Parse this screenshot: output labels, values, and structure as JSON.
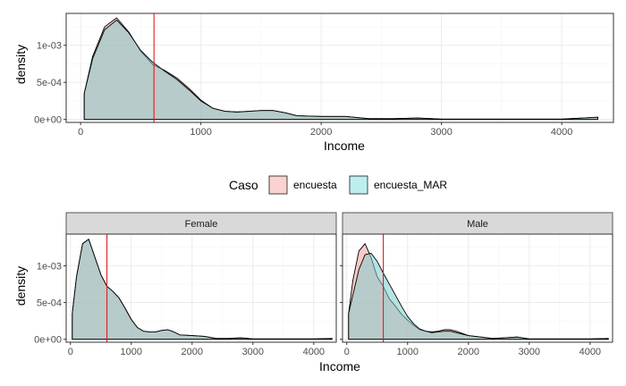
{
  "chart_data": [
    {
      "type": "area",
      "subtype": "density",
      "panel": "overall",
      "xlabel": "Income",
      "ylabel": "density",
      "xlim": [
        -120,
        4430
      ],
      "ylim": [
        -4e-05,
        0.00143
      ],
      "x_ticks": [
        0,
        1000,
        2000,
        3000,
        4000
      ],
      "x_tick_labels": [
        "0",
        "1000",
        "2000",
        "3000",
        "4000"
      ],
      "y_ticks": [
        0,
        0.0005,
        0.001
      ],
      "y_tick_labels": [
        "0e+00",
        "5e-04",
        "1e-03"
      ],
      "grid": true,
      "vline": 610,
      "series": [
        {
          "name": "encuesta",
          "x": [
            30,
            100,
            200,
            300,
            400,
            500,
            600,
            700,
            800,
            900,
            1000,
            1100,
            1200,
            1300,
            1400,
            1500,
            1600,
            1700,
            1800,
            2000,
            2200,
            2400,
            2600,
            2800,
            3000,
            3300,
            3600,
            4000,
            4300
          ],
          "y": [
            0.00035,
            0.00085,
            0.00125,
            0.00137,
            0.00118,
            0.00092,
            0.00074,
            0.00066,
            0.00056,
            0.00042,
            0.00026,
            0.00015,
            0.00011,
            0.0001,
            0.00011,
            0.00012,
            0.00012,
            9e-05,
            5e-05,
            4e-05,
            4e-05,
            1e-05,
            1e-05,
            2e-05,
            5e-06,
            5e-06,
            5e-06,
            5e-06,
            3e-05
          ]
        },
        {
          "name": "encuesta_MAR",
          "x": [
            30,
            100,
            200,
            300,
            400,
            500,
            600,
            700,
            800,
            900,
            1000,
            1100,
            1200,
            1300,
            1400,
            1500,
            1600,
            1700,
            1800,
            2000,
            2200,
            2400,
            2600,
            2800,
            3000,
            3300,
            3600,
            4000,
            4300
          ],
          "y": [
            0.00035,
            0.00082,
            0.00121,
            0.00134,
            0.00117,
            0.00093,
            0.00077,
            0.00065,
            0.00054,
            0.0004,
            0.00025,
            0.00015,
            0.00011,
            0.0001,
            0.00011,
            0.00012,
            0.00012,
            9e-05,
            5e-05,
            4e-05,
            4e-05,
            1e-05,
            1e-05,
            2e-05,
            5e-06,
            5e-06,
            5e-06,
            5e-06,
            3e-05
          ]
        }
      ]
    },
    {
      "type": "area",
      "subtype": "density",
      "panel": "Female",
      "strip": "Female",
      "xlabel": "Income",
      "ylabel": "density",
      "xlim": [
        -70,
        4370
      ],
      "ylim": [
        -4e-05,
        0.00143
      ],
      "x_ticks": [
        0,
        1000,
        2000,
        3000,
        4000
      ],
      "x_tick_labels": [
        "0",
        "1000",
        "2000",
        "3000",
        "4000"
      ],
      "y_ticks": [
        0,
        0.0005,
        0.001
      ],
      "y_tick_labels": [
        "0e+00",
        "5e-04",
        "1e-03"
      ],
      "grid": true,
      "vline": 600,
      "series": [
        {
          "name": "encuesta",
          "x": [
            30,
            100,
            200,
            300,
            400,
            500,
            600,
            700,
            800,
            900,
            1000,
            1100,
            1200,
            1300,
            1400,
            1500,
            1600,
            1700,
            1800,
            2000,
            2200,
            2400,
            2600,
            2800,
            3000,
            3300,
            3600,
            4000,
            4300
          ],
          "y": [
            0.00035,
            0.00085,
            0.0013,
            0.00136,
            0.00112,
            0.00088,
            0.00072,
            0.00065,
            0.00056,
            0.00042,
            0.00027,
            0.00016,
            0.00011,
            0.0001,
            0.0001,
            0.00012,
            0.00013,
            0.0001,
            6e-05,
            5e-05,
            4e-05,
            1e-05,
            1e-05,
            2e-05,
            5e-06,
            5e-06,
            5e-06,
            5e-06,
            1e-05
          ]
        },
        {
          "name": "encuesta_MAR",
          "x": [
            30,
            100,
            200,
            300,
            400,
            500,
            600,
            700,
            800,
            900,
            1000,
            1100,
            1200,
            1300,
            1400,
            1500,
            1600,
            1700,
            1800,
            2000,
            2200,
            2400,
            2600,
            2800,
            3000,
            3300,
            3600,
            4000,
            4300
          ],
          "y": [
            0.00035,
            0.00085,
            0.0013,
            0.00136,
            0.00112,
            0.00088,
            0.00072,
            0.00065,
            0.00056,
            0.00042,
            0.00027,
            0.00016,
            0.00011,
            0.0001,
            0.0001,
            0.00012,
            0.00013,
            0.0001,
            6e-05,
            5e-05,
            4e-05,
            1e-05,
            1e-05,
            2e-05,
            5e-06,
            5e-06,
            5e-06,
            5e-06,
            1e-05
          ]
        }
      ]
    },
    {
      "type": "area",
      "subtype": "density",
      "panel": "Male",
      "strip": "Male",
      "xlabel": "Income",
      "ylabel": "density",
      "xlim": [
        -70,
        4370
      ],
      "ylim": [
        -4e-05,
        0.00143
      ],
      "x_ticks": [
        0,
        1000,
        2000,
        3000,
        4000
      ],
      "x_tick_labels": [
        "0",
        "1000",
        "2000",
        "3000",
        "4000"
      ],
      "y_ticks": [
        0,
        0.0005,
        0.001
      ],
      "y_tick_labels": [
        "0e+00",
        "5e-04",
        "1e-03"
      ],
      "grid": true,
      "vline": 600,
      "series": [
        {
          "name": "encuesta",
          "x": [
            30,
            100,
            200,
            300,
            400,
            500,
            600,
            700,
            800,
            900,
            1000,
            1100,
            1200,
            1300,
            1400,
            1500,
            1600,
            1700,
            1800,
            2000,
            2200,
            2400,
            2600,
            2800,
            3000,
            3300,
            3600,
            4000,
            4300
          ],
          "y": [
            0.00035,
            0.0008,
            0.0012,
            0.0013,
            0.00111,
            0.00085,
            0.00072,
            0.00055,
            0.00045,
            0.00034,
            0.00026,
            0.00019,
            0.00013,
            0.00011,
            0.0001,
            0.00011,
            0.00013,
            0.00013,
            0.00011,
            5e-05,
            3e-05,
            1e-05,
            2e-05,
            3e-05,
            5e-06,
            5e-06,
            5e-06,
            5e-06,
            1e-05
          ]
        },
        {
          "name": "encuesta_MAR",
          "x": [
            30,
            100,
            200,
            300,
            400,
            500,
            600,
            700,
            800,
            900,
            1000,
            1100,
            1200,
            1300,
            1400,
            1500,
            1600,
            1700,
            1800,
            2000,
            2200,
            2400,
            2600,
            2800,
            3000,
            3300,
            3600,
            4000,
            4300
          ],
          "y": [
            0.00035,
            0.0006,
            0.00095,
            0.00115,
            0.00117,
            0.00106,
            0.0009,
            0.00075,
            0.0006,
            0.00045,
            0.00031,
            0.00021,
            0.00014,
            0.00011,
            9e-05,
            0.0001,
            0.00011,
            0.00011,
            9e-05,
            5e-05,
            3e-05,
            1e-05,
            2e-05,
            3e-05,
            5e-06,
            5e-06,
            5e-06,
            5e-06,
            1e-05
          ]
        }
      ]
    }
  ],
  "legend": {
    "title": "Caso",
    "items": [
      {
        "label": "encuesta",
        "fill": "#f8d3d0"
      },
      {
        "label": "encuesta_MAR",
        "fill": "#bdeeee"
      }
    ]
  },
  "colors": {
    "fill_encuesta": "#f4a19a",
    "fill_encuesta_MAR": "#80cccc",
    "vline": "#e41a1c",
    "panel_border": "#333333",
    "strip_bg": "#d9d9d9",
    "grid_major": "#ebebeb",
    "grid_minor": "#f5f5f5"
  }
}
